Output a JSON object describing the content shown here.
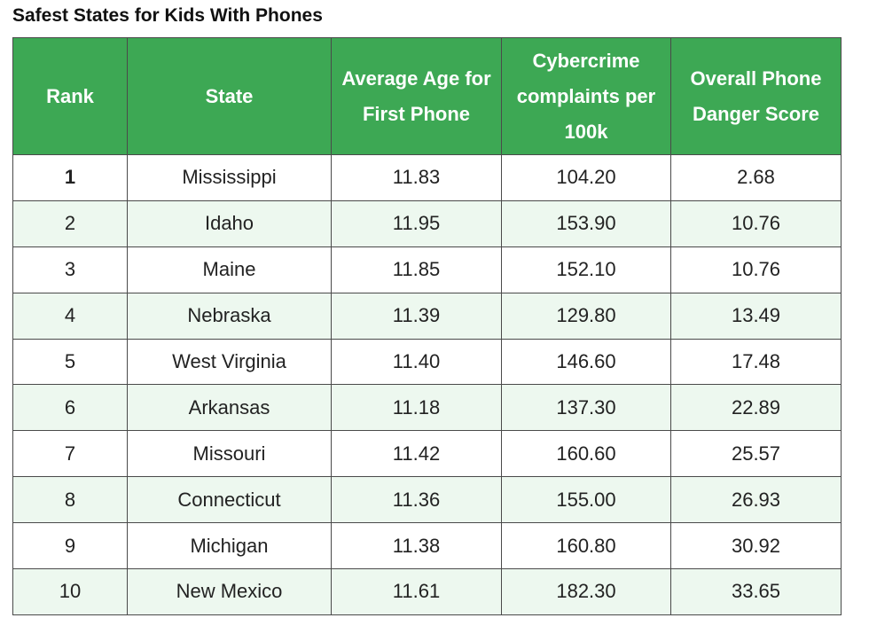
{
  "title": "Safest States for Kids With Phones",
  "table": {
    "header": [
      "Rank",
      "State",
      "Average Age for First Phone",
      "Cybercrime complaints per 100k",
      "Overall Phone Danger Score"
    ],
    "rows": [
      [
        "1",
        "Mississippi",
        "11.83",
        "104.20",
        "2.68"
      ],
      [
        "2",
        "Idaho",
        "11.95",
        "153.90",
        "10.76"
      ],
      [
        "3",
        "Maine",
        "11.85",
        "152.10",
        "10.76"
      ],
      [
        "4",
        "Nebraska",
        "11.39",
        "129.80",
        "13.49"
      ],
      [
        "5",
        "West Virginia",
        "11.40",
        "146.60",
        "17.48"
      ],
      [
        "6",
        "Arkansas",
        "11.18",
        "137.30",
        "22.89"
      ],
      [
        "7",
        "Missouri",
        "11.42",
        "160.60",
        "25.57"
      ],
      [
        "8",
        "Connecticut",
        "11.36",
        "155.00",
        "26.93"
      ],
      [
        "9",
        "Michigan",
        "11.38",
        "160.80",
        "30.92"
      ],
      [
        "10",
        "New Mexico",
        "11.61",
        "182.30",
        "33.65"
      ]
    ]
  }
}
